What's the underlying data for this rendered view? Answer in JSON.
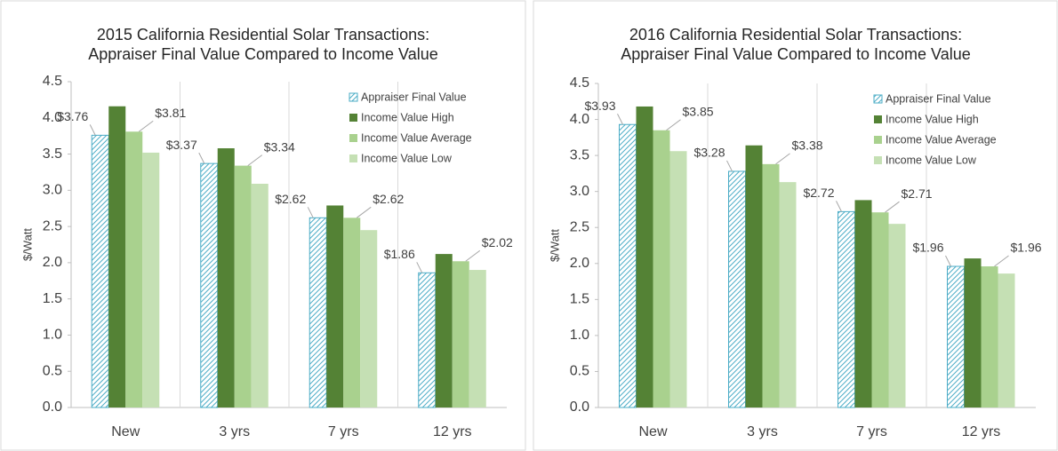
{
  "chart_data": [
    {
      "type": "bar",
      "title": "2015 California Residential Solar Transactions:",
      "subtitle": "Appraiser Final Value Compared to Income Value",
      "y_label": "$/Watt",
      "categories": [
        "New",
        "3 yrs",
        "7 yrs",
        "12 yrs"
      ],
      "series": [
        {
          "name": "Appraiser Final Value",
          "color": "#4bacc6",
          "pattern": "hatch",
          "values": [
            3.76,
            3.37,
            2.62,
            1.86
          ],
          "value_labels": [
            "$3.76",
            "$3.37",
            "$2.62",
            "$1.86"
          ]
        },
        {
          "name": "Income Value High",
          "color": "#548235",
          "values": [
            4.16,
            3.58,
            2.79,
            2.12
          ]
        },
        {
          "name": "Income Value Average",
          "color": "#a9d18e",
          "values": [
            3.81,
            3.34,
            2.62,
            2.02
          ],
          "value_labels": [
            "$3.81",
            "$3.34",
            "$2.62",
            "$2.02"
          ]
        },
        {
          "name": "Income Value Low",
          "color": "#c5e0b4",
          "values": [
            3.52,
            3.09,
            2.45,
            1.9
          ]
        }
      ],
      "ylim": [
        0,
        4.5
      ],
      "yticks": [
        {
          "value": 0,
          "label": "0.0"
        },
        0.5,
        {
          "value": 1,
          "label": "1.0"
        },
        1.5,
        {
          "value": 2,
          "label": "2.0"
        },
        2.5,
        {
          "value": 3,
          "label": "3.0"
        },
        3.5,
        {
          "value": 4,
          "label": "4.0"
        },
        4.5
      ],
      "legend": "top-right"
    },
    {
      "type": "bar",
      "title": "2016 California Residential Solar Transactions:",
      "subtitle": "Appraiser Final Value Compared to Income Value",
      "y_label": "$/Watt",
      "categories": [
        "New",
        "3 yrs",
        "7 yrs",
        "12 yrs"
      ],
      "series": [
        {
          "name": "Appraiser Final Value",
          "color": "#4bacc6",
          "pattern": "hatch",
          "values": [
            3.93,
            3.28,
            2.72,
            1.96
          ],
          "value_labels": [
            "$3.93",
            "$3.28",
            "$2.72",
            "$1.96"
          ]
        },
        {
          "name": "Income Value High",
          "color": "#548235",
          "values": [
            4.18,
            3.64,
            2.88,
            2.07
          ]
        },
        {
          "name": "Income Value Average",
          "color": "#a9d18e",
          "values": [
            3.85,
            3.38,
            2.71,
            1.96
          ],
          "value_labels": [
            "$3.85",
            "$3.38",
            "$2.71",
            "$1.96"
          ]
        },
        {
          "name": "Income Value Low",
          "color": "#c5e0b4",
          "values": [
            3.56,
            3.13,
            2.55,
            1.86
          ]
        }
      ],
      "ylim": [
        0,
        4.5
      ],
      "yticks": [
        {
          "value": 0,
          "label": "0.0"
        },
        0.5,
        {
          "value": 1,
          "label": "1.0"
        },
        1.5,
        {
          "value": 2,
          "label": "2.0"
        },
        2.5,
        {
          "value": 3,
          "label": "3.0"
        },
        3.5,
        {
          "value": 4,
          "label": "4.0"
        },
        4.5
      ],
      "legend": "top-right"
    }
  ]
}
